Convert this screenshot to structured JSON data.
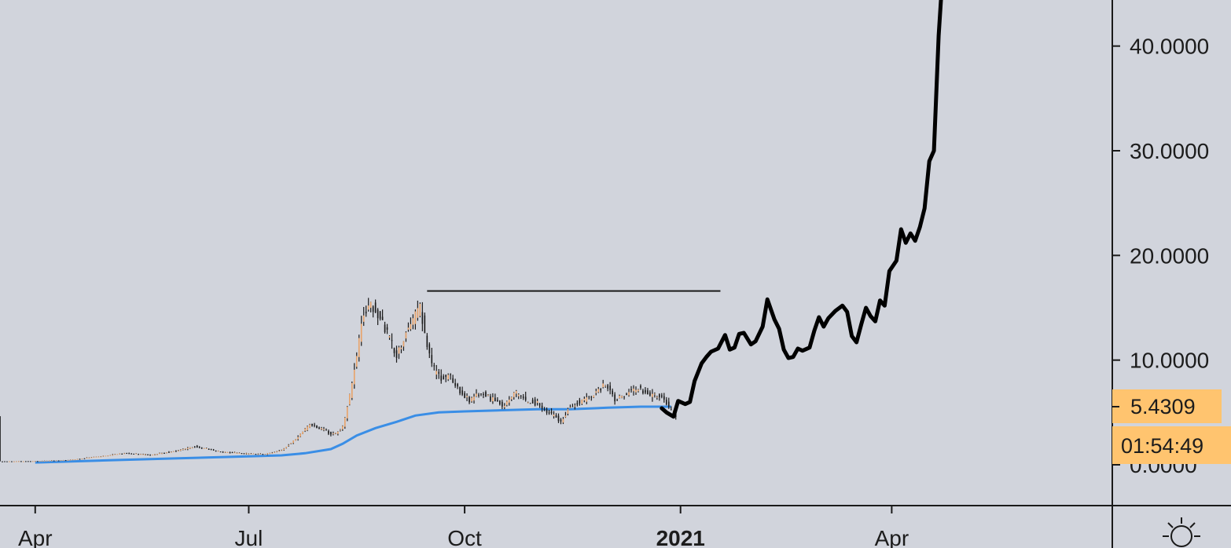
{
  "chart_data": {
    "type": "line",
    "x_axis": {
      "ticks": [
        {
          "label": "Apr",
          "date": "2020-04-01",
          "bold": false
        },
        {
          "label": "Jul",
          "date": "2020-07-01",
          "bold": false
        },
        {
          "label": "Oct",
          "date": "2020-10-01",
          "bold": false
        },
        {
          "label": "2021",
          "date": "2021-01-01",
          "bold": true
        },
        {
          "label": "Apr",
          "date": "2021-04-01",
          "bold": false
        }
      ],
      "range": [
        "2020-03-17",
        "2021-07-04"
      ]
    },
    "y_axis": {
      "ticks": [
        {
          "value": 0,
          "label": "0.0000"
        },
        {
          "value": 10,
          "label": "10.0000"
        },
        {
          "value": 20,
          "label": "20.0000"
        },
        {
          "value": 30,
          "label": "30.0000"
        },
        {
          "value": 40,
          "label": "40.0000"
        }
      ],
      "range": [
        -3.9,
        44.4
      ]
    },
    "grid": false,
    "last_price": {
      "value": 5.4309,
      "label": "5.4309",
      "countdown": "01:54:49",
      "color": "#ffc46f"
    },
    "candle_colors": {
      "up": "#e8a36a",
      "down": "#1a1a1a"
    },
    "ma_color": "#3a8ee6",
    "projection_color": "#000000",
    "price_series": [
      [
        "2020-03-17",
        0.32
      ],
      [
        "2020-04-01",
        0.34
      ],
      [
        "2020-04-15",
        0.45
      ],
      [
        "2020-04-29",
        0.8
      ],
      [
        "2020-05-09",
        1.1
      ],
      [
        "2020-05-20",
        0.95
      ],
      [
        "2020-06-01",
        1.35
      ],
      [
        "2020-06-08",
        1.75
      ],
      [
        "2020-06-20",
        1.2
      ],
      [
        "2020-07-01",
        1.05
      ],
      [
        "2020-07-08",
        1.0
      ],
      [
        "2020-07-15",
        1.4
      ],
      [
        "2020-07-21",
        2.5
      ],
      [
        "2020-07-27",
        3.8
      ],
      [
        "2020-08-02",
        3.3
      ],
      [
        "2020-08-06",
        2.9
      ],
      [
        "2020-08-10",
        3.6
      ],
      [
        "2020-08-13",
        6.5
      ],
      [
        "2020-08-16",
        10.5
      ],
      [
        "2020-08-19",
        14.5
      ],
      [
        "2020-08-22",
        15.2
      ],
      [
        "2020-08-26",
        14.2
      ],
      [
        "2020-08-30",
        11.8
      ],
      [
        "2020-09-02",
        10.5
      ],
      [
        "2020-09-05",
        12.0
      ],
      [
        "2020-09-08",
        13.5
      ],
      [
        "2020-09-12",
        15.0
      ],
      [
        "2020-09-15",
        11.5
      ],
      [
        "2020-09-18",
        9.0
      ],
      [
        "2020-09-21",
        8.3
      ],
      [
        "2020-09-25",
        8.4
      ],
      [
        "2020-09-29",
        7.0
      ],
      [
        "2020-10-03",
        6.1
      ],
      [
        "2020-10-08",
        6.9
      ],
      [
        "2020-10-13",
        6.2
      ],
      [
        "2020-10-18",
        5.5
      ],
      [
        "2020-10-22",
        7.0
      ],
      [
        "2020-10-27",
        6.1
      ],
      [
        "2020-11-01",
        5.9
      ],
      [
        "2020-11-05",
        5.1
      ],
      [
        "2020-11-11",
        4.2
      ],
      [
        "2020-11-15",
        5.6
      ],
      [
        "2020-11-20",
        6.1
      ],
      [
        "2020-11-25",
        6.8
      ],
      [
        "2020-11-30",
        7.7
      ],
      [
        "2020-12-04",
        6.2
      ],
      [
        "2020-12-09",
        6.8
      ],
      [
        "2020-12-14",
        7.3
      ],
      [
        "2020-12-19",
        6.6
      ],
      [
        "2020-12-23",
        6.7
      ],
      [
        "2020-12-27",
        5.5
      ],
      [
        "2020-12-30",
        4.7
      ]
    ],
    "moving_average": [
      [
        "2020-04-01",
        0.22
      ],
      [
        "2020-05-01",
        0.42
      ],
      [
        "2020-06-01",
        0.62
      ],
      [
        "2020-07-01",
        0.8
      ],
      [
        "2020-07-15",
        0.9
      ],
      [
        "2020-07-25",
        1.1
      ],
      [
        "2020-08-05",
        1.5
      ],
      [
        "2020-08-10",
        2.0
      ],
      [
        "2020-08-16",
        2.8
      ],
      [
        "2020-08-24",
        3.5
      ],
      [
        "2020-09-02",
        4.1
      ],
      [
        "2020-09-10",
        4.7
      ],
      [
        "2020-09-20",
        5.0
      ],
      [
        "2020-10-01",
        5.1
      ],
      [
        "2020-10-15",
        5.2
      ],
      [
        "2020-11-01",
        5.3
      ],
      [
        "2020-11-15",
        5.3
      ],
      [
        "2020-12-01",
        5.45
      ],
      [
        "2020-12-15",
        5.55
      ],
      [
        "2020-12-28",
        5.55
      ]
    ],
    "resistance_line": {
      "start": "2020-09-15",
      "end": "2021-01-18",
      "value": 16.6
    },
    "projection": [
      [
        "2020-12-24",
        5.4
      ],
      [
        "2020-12-26",
        5.0
      ],
      [
        "2020-12-29",
        4.6
      ],
      [
        "2020-12-31",
        6.1
      ],
      [
        "2021-01-03",
        5.8
      ],
      [
        "2021-01-05",
        6.0
      ],
      [
        "2021-01-07",
        8.0
      ],
      [
        "2021-01-10",
        9.7
      ],
      [
        "2021-01-12",
        10.3
      ],
      [
        "2021-01-14",
        10.8
      ],
      [
        "2021-01-17",
        11.1
      ],
      [
        "2021-01-20",
        12.4
      ],
      [
        "2021-01-22",
        11.0
      ],
      [
        "2021-01-24",
        11.2
      ],
      [
        "2021-01-26",
        12.5
      ],
      [
        "2021-01-28",
        12.6
      ],
      [
        "2021-01-31",
        11.5
      ],
      [
        "2021-02-02",
        11.8
      ],
      [
        "2021-02-05",
        13.2
      ],
      [
        "2021-02-07",
        15.8
      ],
      [
        "2021-02-10",
        13.9
      ],
      [
        "2021-02-12",
        13.0
      ],
      [
        "2021-02-14",
        11.0
      ],
      [
        "2021-02-16",
        10.2
      ],
      [
        "2021-02-18",
        10.3
      ],
      [
        "2021-02-20",
        11.1
      ],
      [
        "2021-02-22",
        10.9
      ],
      [
        "2021-02-25",
        11.2
      ],
      [
        "2021-02-27",
        12.8
      ],
      [
        "2021-03-01",
        14.1
      ],
      [
        "2021-03-03",
        13.2
      ],
      [
        "2021-03-05",
        14.0
      ],
      [
        "2021-03-08",
        14.7
      ],
      [
        "2021-03-11",
        15.2
      ],
      [
        "2021-03-13",
        14.6
      ],
      [
        "2021-03-15",
        12.3
      ],
      [
        "2021-03-17",
        11.7
      ],
      [
        "2021-03-19",
        13.4
      ],
      [
        "2021-03-21",
        15.0
      ],
      [
        "2021-03-23",
        14.2
      ],
      [
        "2021-03-25",
        13.7
      ],
      [
        "2021-03-27",
        15.7
      ],
      [
        "2021-03-29",
        15.2
      ],
      [
        "2021-03-31",
        18.5
      ],
      [
        "2021-04-03",
        19.5
      ],
      [
        "2021-04-05",
        22.5
      ],
      [
        "2021-04-07",
        21.2
      ],
      [
        "2021-04-09",
        22.1
      ],
      [
        "2021-04-11",
        21.4
      ],
      [
        "2021-04-13",
        22.7
      ],
      [
        "2021-04-15",
        24.5
      ],
      [
        "2021-04-17",
        29.0
      ],
      [
        "2021-04-19",
        30.0
      ],
      [
        "2021-04-21",
        41.0
      ],
      [
        "2021-04-22",
        44.5
      ]
    ]
  }
}
